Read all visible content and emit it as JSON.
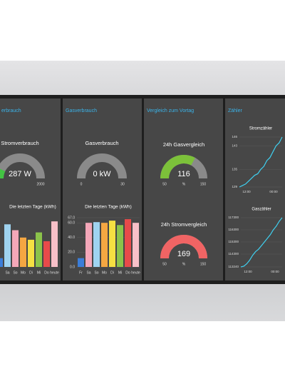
{
  "screen": {
    "panels": [
      {
        "header": "erbrauch",
        "gauge": {
          "title": "Stromverbrauch",
          "value": 287,
          "value_label": "287 W",
          "min": 0,
          "max": 2000,
          "max_label": "2000",
          "color": "#43c443"
        },
        "bars": {
          "title": "Die letzten Tage (kWh)",
          "categories": [
            null,
            "Sa",
            "So",
            "Mo",
            "Di",
            "Mi",
            "Do",
            "heute"
          ],
          "values": [
            12,
            58,
            50,
            40,
            37,
            47,
            35,
            62
          ],
          "colors": [
            "#3b7dd8",
            "#9fd3f0",
            "#f4a7b9",
            "#f5a742",
            "#f5e042",
            "#8bc34a",
            "#e84a4a",
            "#f8c0c8"
          ]
        }
      },
      {
        "header": "Gasverbrauch",
        "gauge": {
          "title": "Gasverbrauch",
          "value": 0,
          "value_label": "0 kW",
          "min": 0,
          "max": 30,
          "min_label": "0",
          "max_label": "30",
          "color": "#43c443"
        },
        "bars": {
          "title": "Die letzten Tage (kWh)",
          "categories": [
            "Fr",
            "Sa",
            "So",
            "Mo",
            "Di",
            "Mi",
            "Do",
            "heute"
          ],
          "values": [
            12,
            60,
            61,
            60,
            63,
            57,
            65,
            60
          ],
          "colors": [
            "#3b7dd8",
            "#f4a7b9",
            "#9fd3f0",
            "#f5a742",
            "#f5e042",
            "#8bc34a",
            "#e84a4a",
            "#f8c0c8"
          ],
          "ylim": [
            0,
            67
          ],
          "yticks": [
            {
              "value": 0,
              "label": "0.0"
            },
            {
              "value": 20,
              "label": "20.0"
            },
            {
              "value": 40,
              "label": "40.0"
            },
            {
              "value": 60,
              "label": "60.0"
            },
            {
              "value": 67,
              "label": "67.0"
            }
          ]
        }
      },
      {
        "header": "Vergleich zum Vortag",
        "gauges": [
          {
            "title": "24h Gasvergleich",
            "value": 116,
            "value_label": "116",
            "unit": "%",
            "min": 50,
            "max": 150,
            "min_label": "50",
            "max_label": "150",
            "color": "#7cc13a"
          },
          {
            "title": "24h Stromvergleich",
            "value": 169,
            "value_label": "169",
            "unit": "%",
            "min": 50,
            "max": 150,
            "min_label": "50",
            "max_label": "150",
            "color": "#f06464"
          }
        ]
      },
      {
        "header": "Zähler",
        "lines": [
          {
            "title": "Stromzähler",
            "ylim": [
              129,
              146
            ],
            "yticks": [
              129,
              135,
              143,
              146
            ],
            "xlabels": [
              "12:00",
              "00:00"
            ],
            "values": [
              129,
              129.5,
              130,
              131,
              132,
              133,
              133.5,
              135,
              136,
              138,
              139,
              141,
              143,
              144,
              146
            ]
          },
          {
            "title": "Gaszähler",
            "ylim": [
              113240,
              117300
            ],
            "yticks": [
              113240,
              114300,
              115300,
              116300,
              117300
            ],
            "xlabels": [
              "12:00",
              "00:00"
            ],
            "values": [
              113240,
              113300,
              113500,
              113800,
              114200,
              114500,
              114700,
              115000,
              115300,
              115600,
              115900,
              116300,
              116600,
              117000,
              117300
            ]
          }
        ]
      }
    ]
  }
}
